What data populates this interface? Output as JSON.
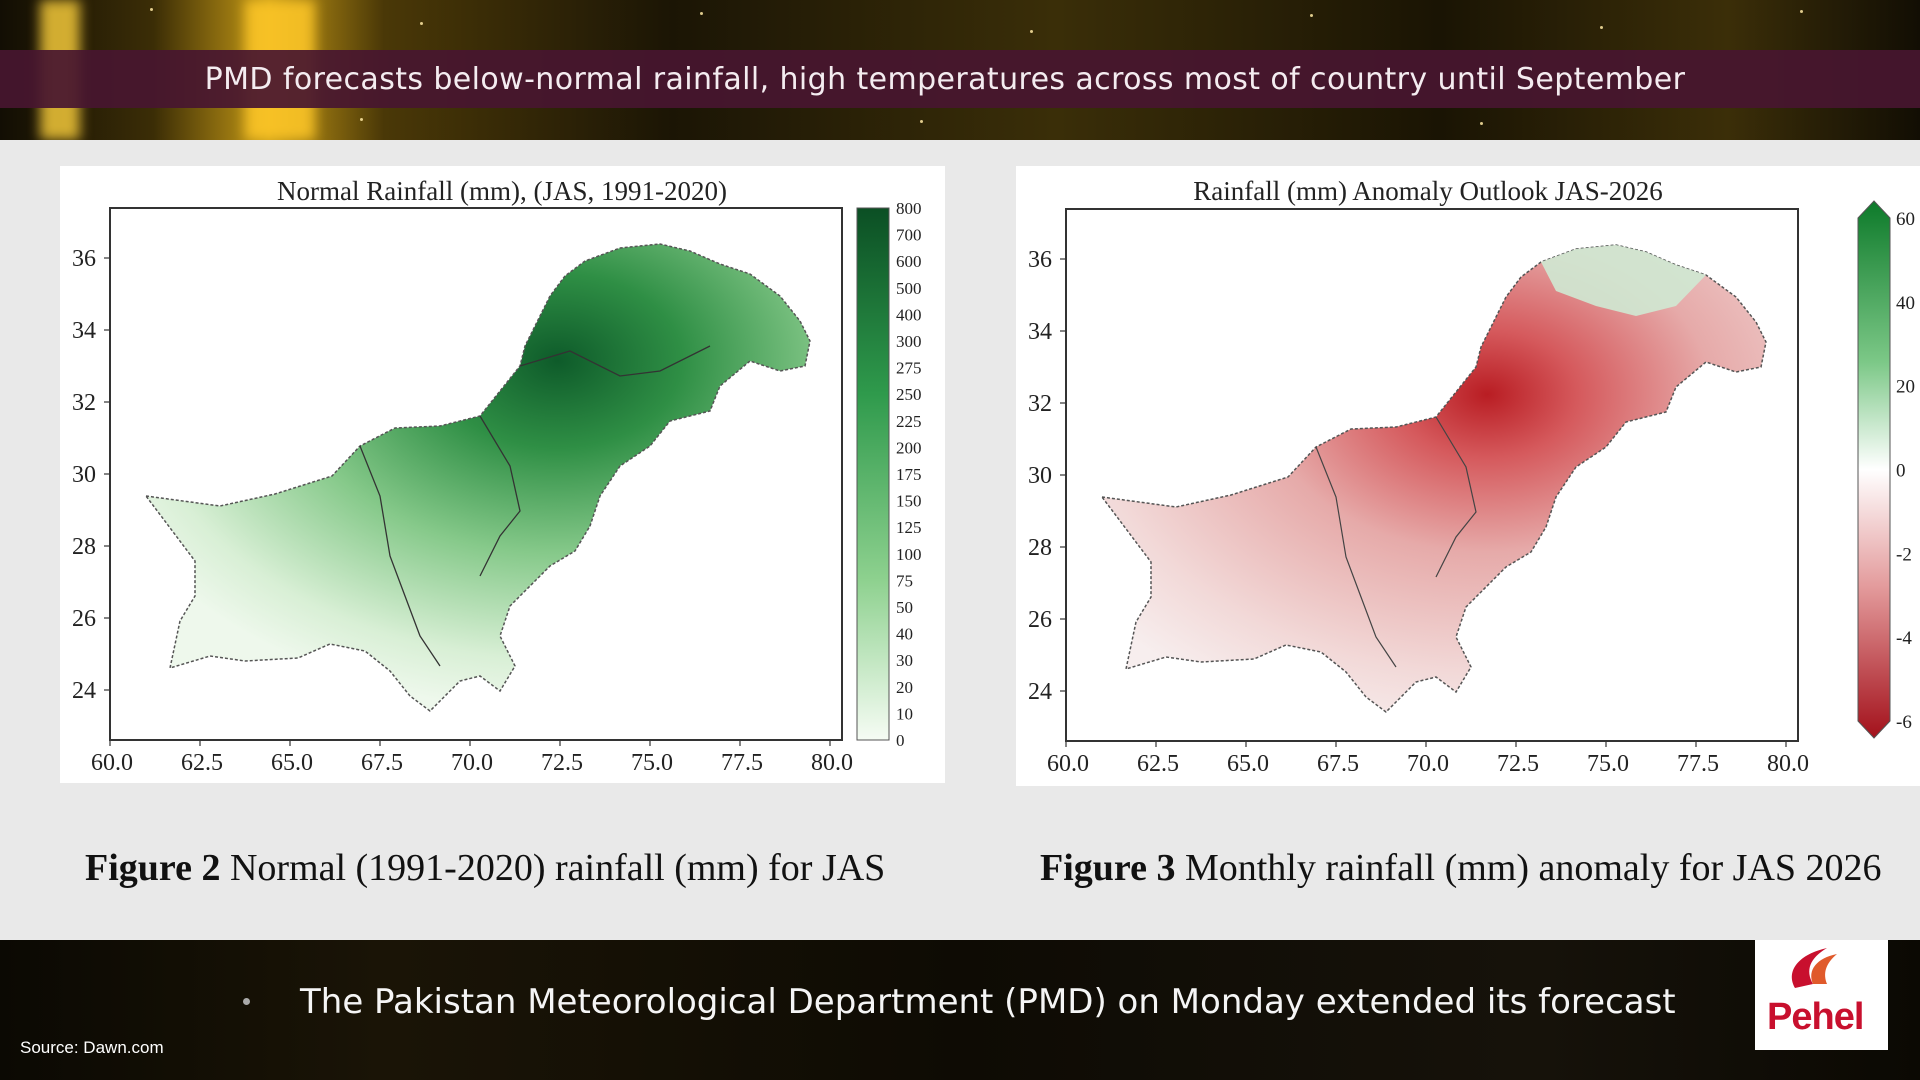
{
  "headline": "PMD forecasts below-normal rainfall, high temperatures across most of country until September",
  "figures": [
    {
      "title": "Normal Rainfall (mm), (JAS, 1991-2020)",
      "x_ticks": [
        "60.0",
        "62.5",
        "65.0",
        "67.5",
        "70.0",
        "72.5",
        "75.0",
        "77.5",
        "80.0"
      ],
      "y_ticks": [
        "36",
        "34",
        "32",
        "30",
        "28",
        "26",
        "24"
      ],
      "colorbar_ticks": [
        "800",
        "700",
        "600",
        "500",
        "400",
        "300",
        "275",
        "250",
        "225",
        "200",
        "175",
        "150",
        "125",
        "100",
        "75",
        "50",
        "40",
        "30",
        "20",
        "10",
        "0"
      ],
      "colors": {
        "low": "#f4fbf2",
        "high": "#0b5a2a"
      },
      "caption_bold": "Figure 2",
      "caption_text": " Normal (1991-2020) rainfall (mm) for JAS"
    },
    {
      "title": "Rainfall (mm) Anomaly Outlook  JAS-2026",
      "x_ticks": [
        "60.0",
        "62.5",
        "65.0",
        "67.5",
        "70.0",
        "72.5",
        "75.0",
        "77.5",
        "80.0"
      ],
      "y_ticks": [
        "36",
        "34",
        "32",
        "30",
        "28",
        "26",
        "24"
      ],
      "colorbar_ticks": [
        "60",
        "40",
        "20",
        "0",
        "-2",
        "-4",
        "-6"
      ],
      "colors": {
        "positive": "#1b8a32",
        "negative": "#b3121c",
        "neutral": "#ffffff"
      },
      "caption_bold": "Figure 3",
      "caption_text": " Monthly rainfall (mm) anomaly for JAS 2026"
    }
  ],
  "ticker": "The Pakistan Meteorological Department (PMD) on Monday extended its forecast",
  "source": "Source: Dawn.com",
  "logo": {
    "text": "Pehel",
    "icon": "pehel-flame-logo",
    "color": "#c8102e"
  }
}
